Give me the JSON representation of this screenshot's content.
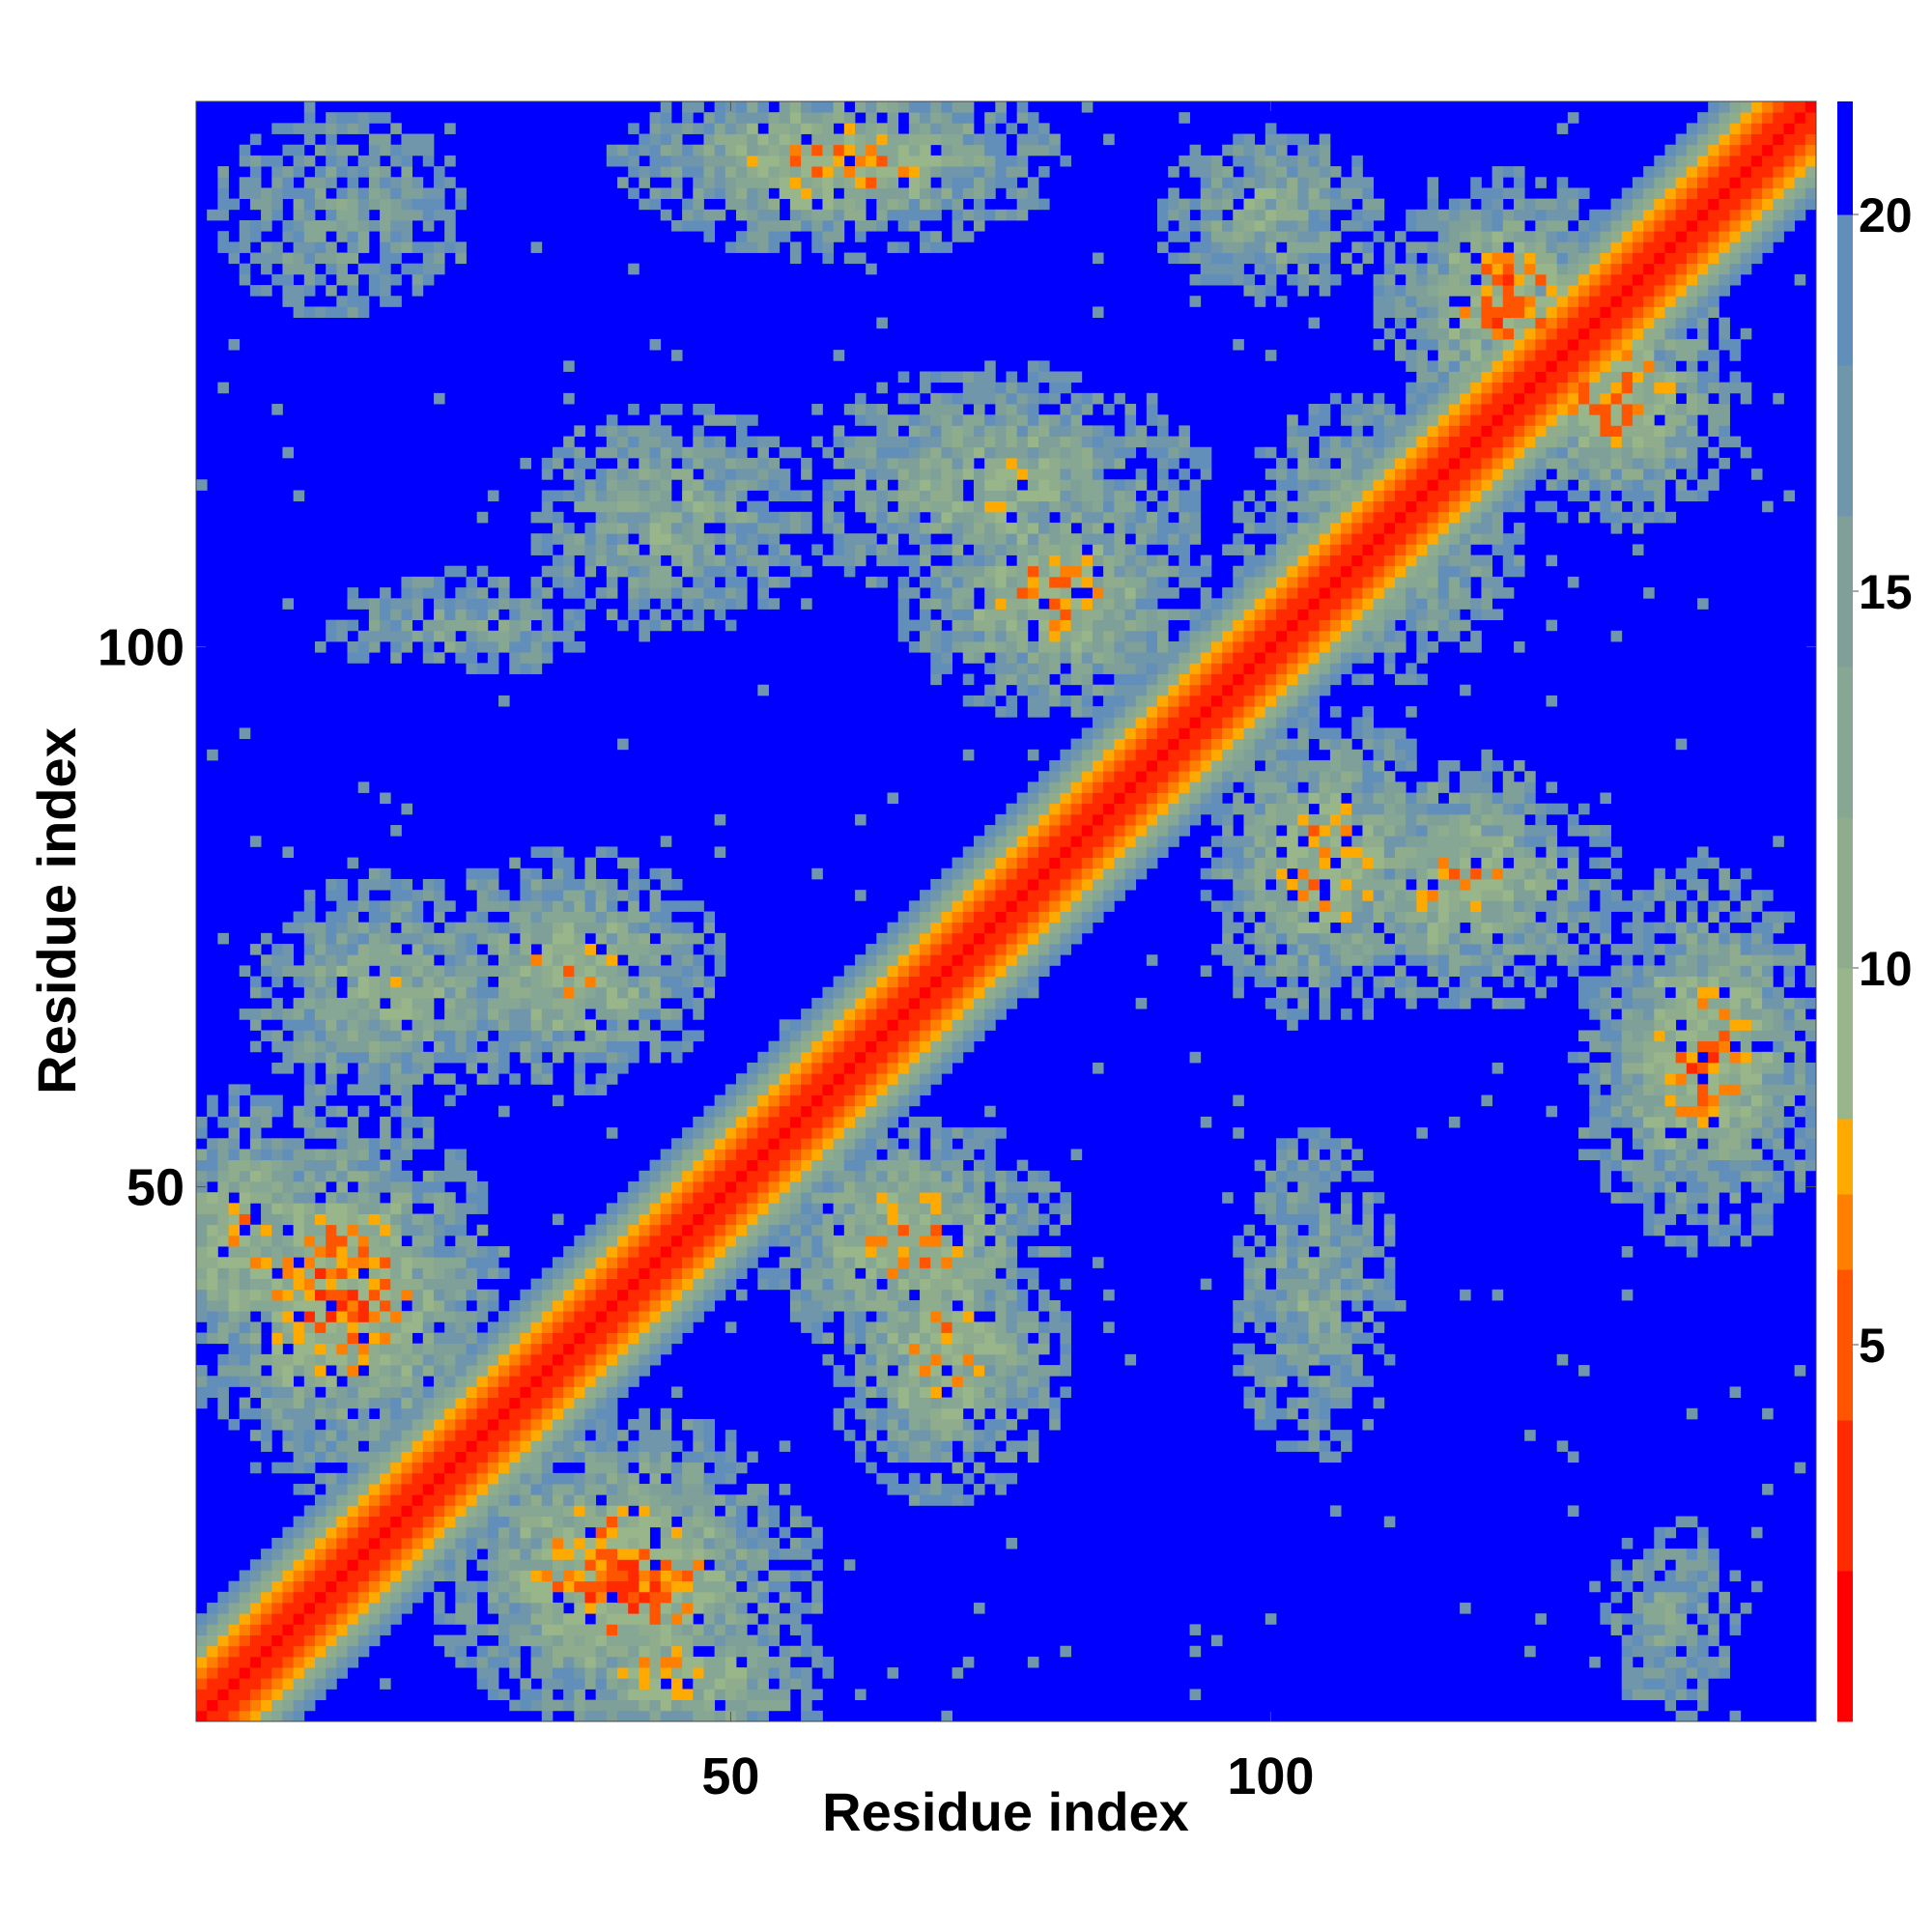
{
  "chart_data": {
    "type": "heatmap",
    "title": "",
    "xlabel": "Residue index",
    "ylabel": "Residue index",
    "x_range": [
      1,
      150
    ],
    "y_range": [
      1,
      150
    ],
    "x_ticks": [
      50,
      100
    ],
    "x_tick_labels": [
      "50",
      "100"
    ],
    "y_ticks": [
      50,
      100
    ],
    "y_tick_labels": [
      "50",
      "100"
    ],
    "colorbar": {
      "range": [
        0,
        21.5
      ],
      "ticks": [
        5,
        10,
        15,
        20
      ],
      "tick_labels": [
        "5",
        "10",
        "15",
        "20"
      ],
      "bands": [
        {
          "from": 0,
          "to": 2,
          "color": "#ff0000"
        },
        {
          "from": 2,
          "to": 4,
          "color": "#ff2a00"
        },
        {
          "from": 4,
          "to": 6,
          "color": "#ff5500"
        },
        {
          "from": 6,
          "to": 7,
          "color": "#ff8000"
        },
        {
          "from": 7,
          "to": 8,
          "color": "#ffaa00"
        },
        {
          "from": 8,
          "to": 10,
          "color": "#98b68a"
        },
        {
          "from": 10,
          "to": 12,
          "color": "#8fad8d"
        },
        {
          "from": 12,
          "to": 14,
          "color": "#86a793"
        },
        {
          "from": 14,
          "to": 16,
          "color": "#7ea099"
        },
        {
          "from": 16,
          "to": 18,
          "color": "#6f96ab"
        },
        {
          "from": 18,
          "to": 20,
          "color": "#628fba"
        },
        {
          "from": 20,
          "to": 21.5,
          "color": "#0000ff"
        }
      ]
    },
    "background_color": "#0000ff",
    "contact_regions": [
      {
        "x": [
          1,
          150
        ],
        "y": [
          1,
          150
        ],
        "kind": "diagonal",
        "core_width": 2,
        "mid_width": 5,
        "halo_width": 9
      },
      {
        "cx": 14,
        "cy": 40,
        "sx": 10,
        "sy": 12,
        "strength": 0.9
      },
      {
        "cx": 40,
        "cy": 14,
        "sx": 12,
        "sy": 10,
        "strength": 0.9
      },
      {
        "cx": 45,
        "cy": 5,
        "sx": 10,
        "sy": 6,
        "strength": 0.7
      },
      {
        "cx": 5,
        "cy": 45,
        "sx": 6,
        "sy": 10,
        "strength": 0.7
      },
      {
        "cx": 35,
        "cy": 70,
        "sx": 10,
        "sy": 8,
        "strength": 0.7
      },
      {
        "cx": 70,
        "cy": 35,
        "sx": 8,
        "sy": 10,
        "strength": 0.7
      },
      {
        "cx": 67,
        "cy": 45,
        "sx": 10,
        "sy": 8,
        "strength": 0.75
      },
      {
        "cx": 18,
        "cy": 68,
        "sx": 10,
        "sy": 8,
        "strength": 0.55
      },
      {
        "cx": 80,
        "cy": 105,
        "sx": 10,
        "sy": 8,
        "strength": 0.75
      },
      {
        "cx": 75,
        "cy": 115,
        "sx": 14,
        "sy": 8,
        "strength": 0.6
      },
      {
        "cx": 60,
        "cy": 145,
        "sx": 14,
        "sy": 6,
        "strength": 0.8
      },
      {
        "cx": 45,
        "cy": 112,
        "sx": 10,
        "sy": 8,
        "strength": 0.5
      },
      {
        "cx": 25,
        "cy": 102,
        "sx": 10,
        "sy": 4,
        "strength": 0.4
      },
      {
        "cx": 105,
        "cy": 80,
        "sx": 8,
        "sy": 10,
        "strength": 0.75
      },
      {
        "cx": 118,
        "cy": 78,
        "sx": 10,
        "sy": 8,
        "strength": 0.7
      },
      {
        "cx": 140,
        "cy": 62,
        "sx": 8,
        "sy": 12,
        "strength": 0.8
      },
      {
        "cx": 104,
        "cy": 40,
        "sx": 6,
        "sy": 12,
        "strength": 0.45
      },
      {
        "cx": 132,
        "cy": 123,
        "sx": 8,
        "sy": 8,
        "strength": 0.85
      },
      {
        "cx": 122,
        "cy": 132,
        "sx": 8,
        "sy": 8,
        "strength": 0.85
      },
      {
        "cx": 110,
        "cy": 110,
        "sx": 10,
        "sy": 10,
        "strength": 0.55
      },
      {
        "cx": 100,
        "cy": 140,
        "sx": 8,
        "sy": 6,
        "strength": 0.5
      },
      {
        "cx": 137,
        "cy": 10,
        "sx": 5,
        "sy": 8,
        "strength": 0.35
      },
      {
        "cx": 14,
        "cy": 140,
        "sx": 10,
        "sy": 8,
        "strength": 0.35
      }
    ]
  }
}
